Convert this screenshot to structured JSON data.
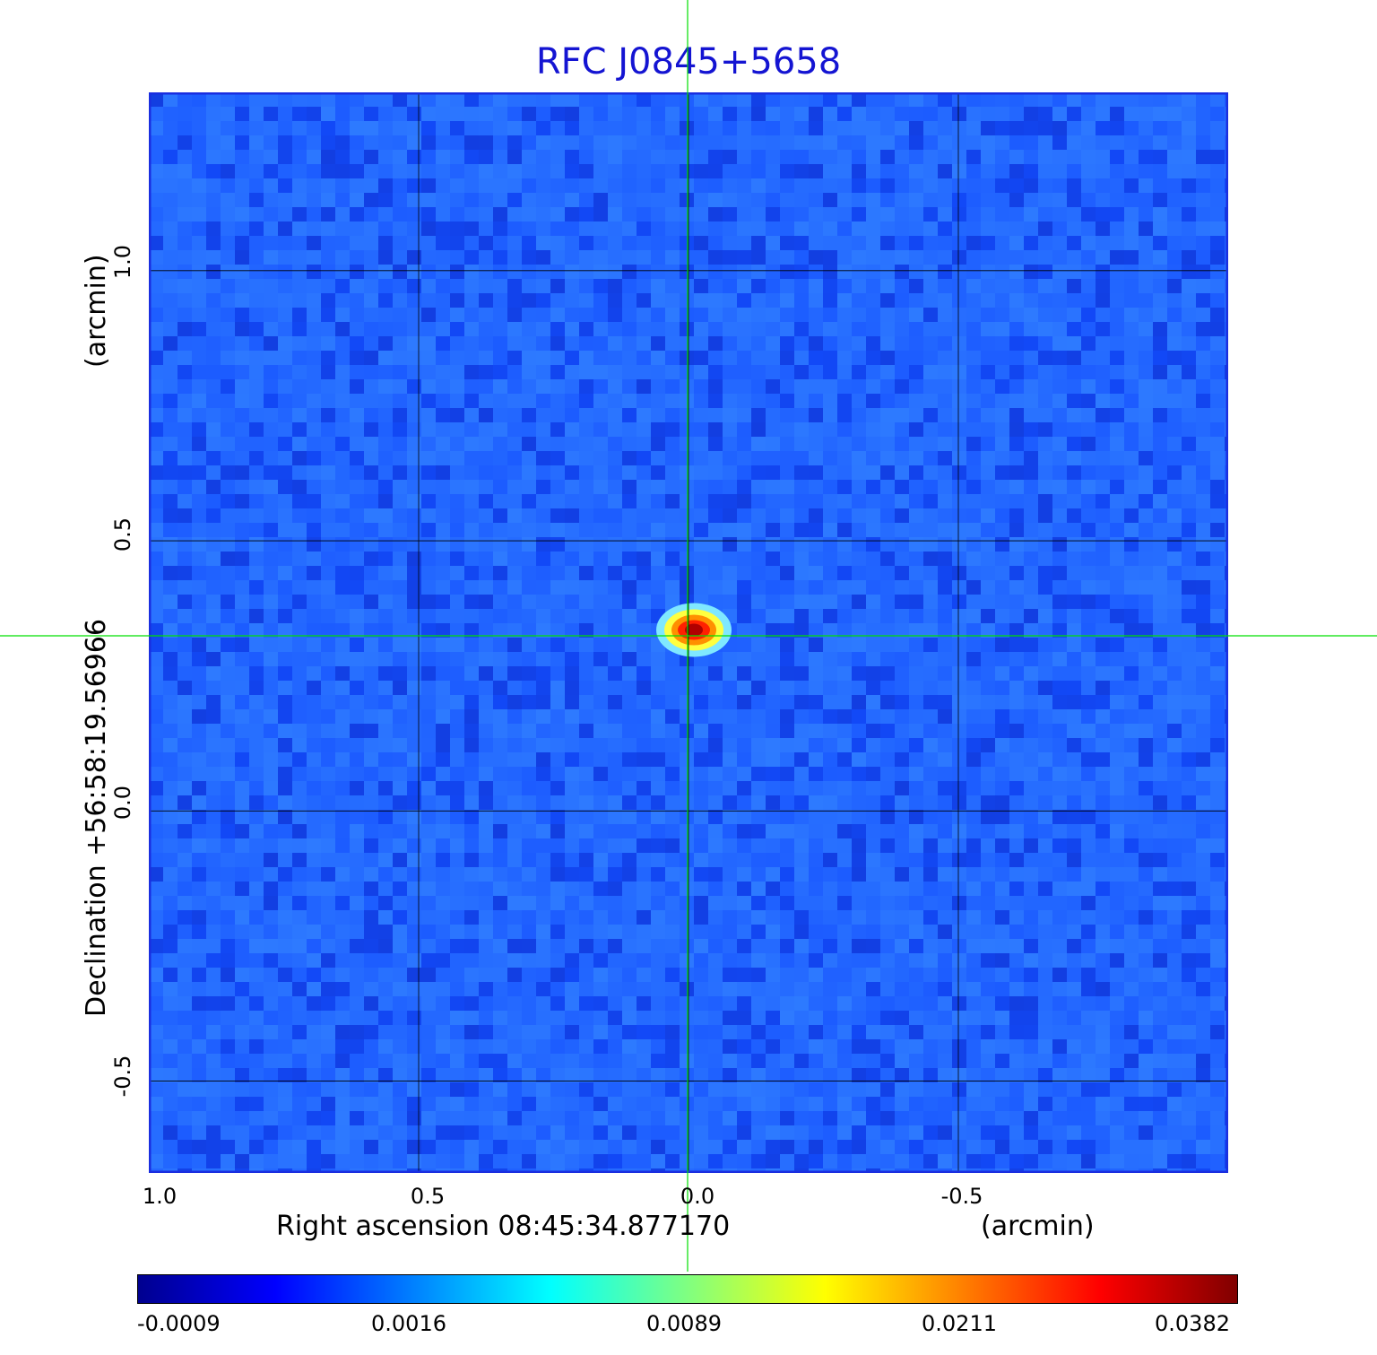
{
  "chart_data": {
    "type": "heatmap",
    "title": "RFC J0845+5658",
    "xlabel": "Right ascension  08:45:34.877170",
    "xunit": "(arcmin)",
    "ylabel": "Declination  +56:58:19.56966",
    "yunit": "(arcmin)",
    "x_ticks": [
      "1.0",
      "0.5",
      "0.0",
      "-0.5"
    ],
    "y_ticks": [
      "1.0",
      "0.5",
      "0.0",
      "-0.5"
    ],
    "x_tick_values": [
      1.0,
      0.5,
      0.0,
      -0.5
    ],
    "y_tick_values": [
      1.0,
      0.5,
      0.0,
      -0.5
    ],
    "xlim": [
      1.0,
      -1.0
    ],
    "ylim": [
      -0.67,
      1.33
    ],
    "grid": true,
    "crosshair": {
      "x": 0.0,
      "y": 0.33
    },
    "source_peak": {
      "x": -0.01,
      "y": 0.335,
      "value": 0.0382
    },
    "colorbar": {
      "ticks": [
        "-0.0009",
        "0.0016",
        "0.0089",
        "0.0211",
        "0.0382"
      ],
      "colormap": "jet"
    },
    "colors": {
      "title": "#1414d2",
      "background_field": "#1e5aff",
      "crosshair": "#00e000",
      "frame": "#1a2ee0"
    }
  }
}
